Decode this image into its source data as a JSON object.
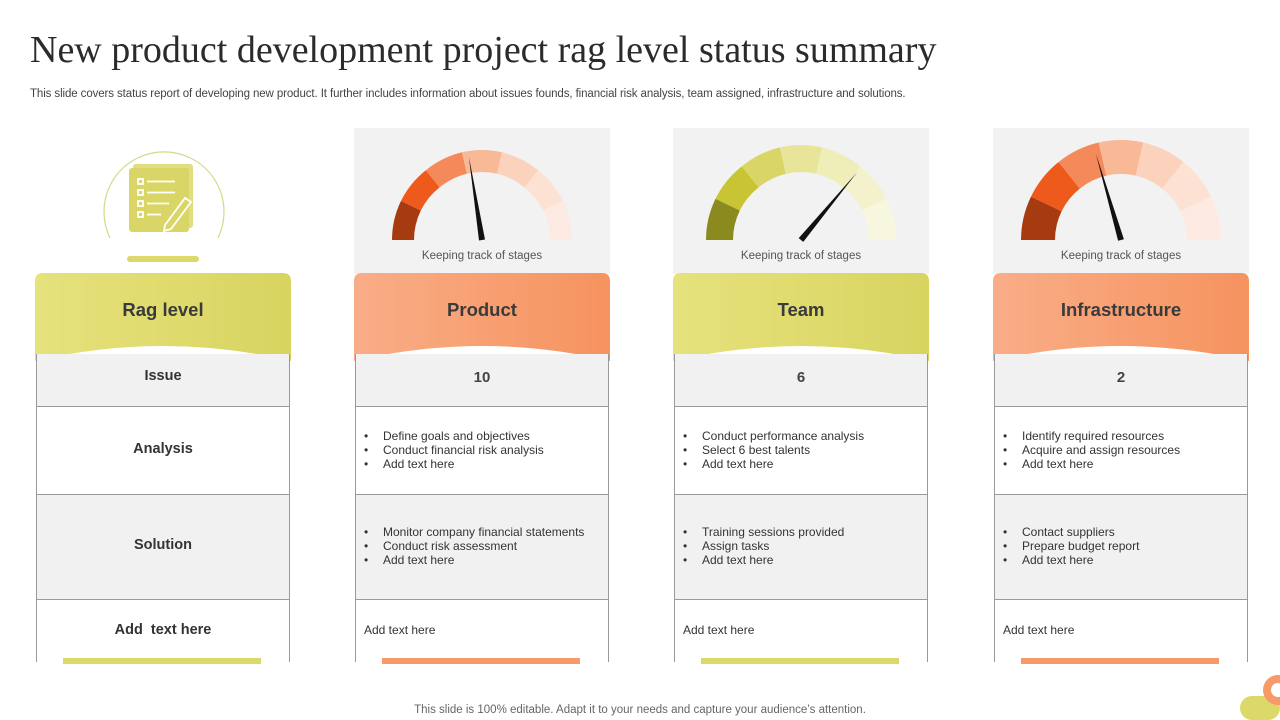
{
  "page": {
    "title": "New product development project rag level status summary",
    "subtitle": "This slide covers status report of developing new product. It further includes information about issues founds, financial risk analysis, team assigned, infrastructure and solutions.",
    "footer": "This slide is 100% editable. Adapt it to your needs and capture your audience’s attention."
  },
  "colors": {
    "yellow": "#dcd86a",
    "orange": "#f79a6a",
    "gray_row": "#f1f1f1"
  },
  "rag_column": {
    "icon": "document-checklist-pencil-icon",
    "header": "Rag level",
    "rows": [
      "Issue",
      "Analysis",
      "Solution",
      "Add  text here"
    ]
  },
  "columns": [
    {
      "header": "Product",
      "gauge_caption": "Keeping track of stages",
      "gauge_level": 0.45,
      "issue_count": "10",
      "analysis": [
        "Define goals and objectives",
        "Conduct financial risk analysis",
        "Add text here"
      ],
      "solution": [
        "Monitor company financial statements",
        "Conduct risk assessment",
        "Add text here"
      ],
      "note": "Add text here"
    },
    {
      "header": "Team",
      "gauge_caption": "Keeping track of stages",
      "gauge_level": 0.72,
      "issue_count": "6",
      "analysis": [
        "Conduct performance analysis",
        "Select 6 best talents",
        "Add text here"
      ],
      "solution": [
        "Training sessions provided",
        "Assign tasks",
        "Add text here"
      ],
      "note": "Add text here"
    },
    {
      "header": "Infrastructure",
      "gauge_caption": "Keeping track of stages",
      "gauge_level": 0.41,
      "issue_count": "2",
      "analysis": [
        "Identify required resources",
        "Acquire and assign resources",
        "Add text here"
      ],
      "solution": [
        "Contact suppliers",
        "Prepare budget report",
        "Add text here"
      ],
      "note": "Add text here"
    }
  ]
}
